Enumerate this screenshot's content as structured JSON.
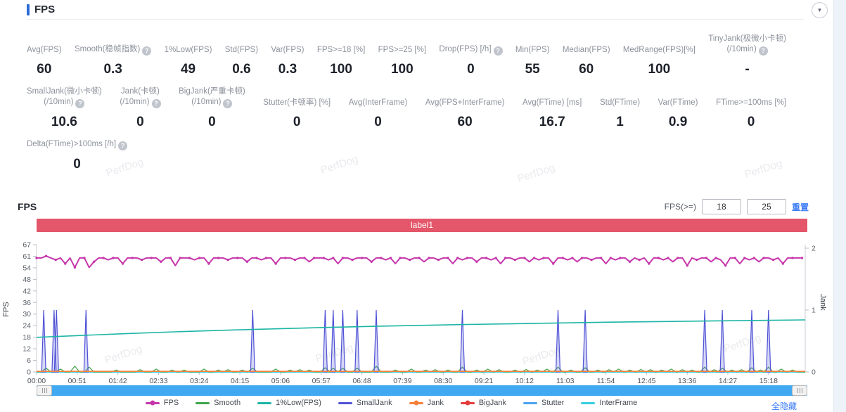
{
  "page": {
    "title": "FPS",
    "watermark": "PerfDog"
  },
  "header": {
    "collapse_icon": "caret-down"
  },
  "stats": {
    "rows": [
      {
        "items": [
          {
            "label": "Avg(FPS)",
            "value": "60"
          },
          {
            "label": "Smooth(稳帧指数)",
            "help": true,
            "value": "0.3"
          },
          {
            "label": "1%Low(FPS)",
            "value": "49"
          },
          {
            "label": "Std(FPS)",
            "value": "0.6"
          },
          {
            "label": "Var(FPS)",
            "value": "0.3"
          },
          {
            "label": "FPS>=18 [%]",
            "value": "100"
          },
          {
            "label": "FPS>=25 [%]",
            "value": "100"
          },
          {
            "label": "Drop(FPS) [/h]",
            "help": true,
            "value": "0"
          },
          {
            "label": "Min(FPS)",
            "value": "55"
          },
          {
            "label": "Median(FPS)",
            "value": "60"
          },
          {
            "label": "MedRange(FPS)[%]",
            "value": "100"
          },
          {
            "label": "TinyJank(极微小卡顿)",
            "label2": "(/10min)",
            "help": true,
            "value": "-"
          }
        ]
      },
      {
        "items": [
          {
            "label": "SmallJank(微小卡顿)",
            "label2": "(/10min)",
            "help": true,
            "value": "10.6"
          },
          {
            "label": "Jank(卡顿)",
            "label2": "(/10min)",
            "help": true,
            "value": "0"
          },
          {
            "label": "BigJank(严重卡顿)",
            "label2": "(/10min)",
            "help": true,
            "value": "0"
          },
          {
            "label": "Stutter(卡顿率) [%]",
            "value": "0"
          },
          {
            "label": "Avg(InterFrame)",
            "value": "0"
          },
          {
            "label": "Avg(FPS+InterFrame)",
            "value": "60"
          },
          {
            "label": "Avg(FTime) [ms]",
            "value": "16.7"
          },
          {
            "label": "Std(FTime)",
            "value": "1"
          },
          {
            "label": "Var(FTime)",
            "value": "0.9"
          },
          {
            "label": "FTime>=100ms [%]",
            "value": "0"
          }
        ]
      },
      {
        "items": [
          {
            "label": "Delta(FTime)>100ms [/h]",
            "help": true,
            "value": "0"
          }
        ]
      }
    ]
  },
  "chart_section": {
    "heading": "FPS",
    "filter": {
      "label": "FPS(>=)",
      "min": "18",
      "max": "25",
      "reset_label": "重置"
    },
    "banner": {
      "text": "label1",
      "color": "#e4566a"
    },
    "hide_all_label": "全隐藏"
  },
  "chart_data": {
    "type": "line",
    "title": "label1",
    "y_left": {
      "label": "FPS",
      "range": [
        0,
        67
      ],
      "tick_labels": [
        0,
        6,
        12,
        18,
        24,
        30,
        36,
        42,
        48,
        54,
        61,
        67
      ]
    },
    "y_right": {
      "label": "Jank",
      "range": [
        0,
        2
      ],
      "tick_labels": [
        0,
        1,
        2
      ]
    },
    "x": {
      "max_seconds": 964,
      "tick_seconds": [
        0,
        51,
        102,
        153,
        204,
        255,
        306,
        357,
        408,
        459,
        510,
        561,
        612,
        663,
        714,
        765,
        816,
        867,
        918
      ],
      "tick_labels": [
        "00:00",
        "00:51",
        "01:42",
        "02:33",
        "03:24",
        "04:15",
        "05:06",
        "05:57",
        "06:48",
        "07:39",
        "08:30",
        "09:21",
        "10:12",
        "11:03",
        "11:54",
        "12:45",
        "13:36",
        "14:27",
        "15:18"
      ]
    },
    "series": [
      {
        "name": "FPS",
        "color": "#c636ab",
        "axis": "left",
        "type": "line-dot",
        "t_step": 6,
        "values": [
          60,
          60,
          61,
          60,
          59,
          60,
          57,
          60,
          55,
          60,
          60,
          55,
          58,
          60,
          60,
          59,
          60,
          60,
          57,
          60,
          60,
          60,
          59,
          60,
          60,
          60,
          58,
          60,
          60,
          56,
          60,
          60,
          60,
          59,
          60,
          60,
          57,
          60,
          60,
          60,
          59,
          60,
          60,
          60,
          58,
          60,
          60,
          59,
          60,
          60,
          57,
          60,
          60,
          60,
          59,
          60,
          60,
          58,
          60,
          60,
          60,
          59,
          60,
          57,
          60,
          60,
          59,
          60,
          60,
          60,
          58,
          60,
          60,
          59,
          60,
          57,
          60,
          60,
          59,
          60,
          60,
          58,
          60,
          60,
          59,
          60,
          60,
          57,
          60,
          59,
          60,
          60,
          58,
          60,
          60,
          59,
          60,
          57,
          60,
          60,
          59,
          60,
          60,
          58,
          60,
          59,
          60,
          60,
          57,
          60,
          60,
          59,
          60,
          58,
          60,
          60,
          59,
          60,
          60,
          57,
          60,
          59,
          60,
          60,
          58,
          60,
          59,
          60,
          57,
          60,
          60,
          59,
          60,
          58,
          60,
          60,
          56,
          60,
          59,
          60,
          60,
          58,
          60,
          59,
          56,
          60,
          60,
          57,
          60,
          59,
          60,
          58,
          60,
          60,
          59,
          60,
          57,
          60,
          60,
          60,
          60
        ]
      },
      {
        "name": "Smooth",
        "color": "#3fa54a",
        "axis": "left",
        "type": "spikes-line",
        "spikes": [
          [
            12,
            2
          ],
          [
            30,
            1.5
          ],
          [
            48,
            3
          ],
          [
            66,
            2.5
          ],
          [
            100,
            1
          ],
          [
            130,
            1.2
          ],
          [
            150,
            1.5
          ],
          [
            170,
            1
          ],
          [
            185,
            1
          ],
          [
            210,
            1.5
          ],
          [
            228,
            1
          ],
          [
            240,
            1.2
          ],
          [
            258,
            1
          ],
          [
            271,
            2
          ],
          [
            300,
            1.5
          ],
          [
            318,
            1
          ],
          [
            330,
            1.2
          ],
          [
            342,
            1
          ],
          [
            362,
            2.2
          ],
          [
            372,
            2
          ],
          [
            384,
            2
          ],
          [
            402,
            2
          ],
          [
            426,
            3
          ],
          [
            450,
            1
          ],
          [
            470,
            1.5
          ],
          [
            488,
            1
          ],
          [
            500,
            1.2
          ],
          [
            516,
            1
          ],
          [
            534,
            2.5
          ],
          [
            552,
            1
          ],
          [
            566,
            1.5
          ],
          [
            580,
            1.2
          ],
          [
            600,
            1
          ],
          [
            614,
            1.3
          ],
          [
            628,
            1
          ],
          [
            640,
            1.5
          ],
          [
            654,
            2.5
          ],
          [
            670,
            1
          ],
          [
            688,
            2.2
          ],
          [
            704,
            1
          ],
          [
            718,
            1.2
          ],
          [
            730,
            1.5
          ],
          [
            744,
            1
          ],
          [
            758,
            1.3
          ],
          [
            770,
            1.2
          ],
          [
            784,
            1
          ],
          [
            796,
            1.5
          ],
          [
            810,
            1.2
          ],
          [
            822,
            1
          ],
          [
            838,
            2.5
          ],
          [
            850,
            1.2
          ],
          [
            860,
            2
          ],
          [
            872,
            1
          ],
          [
            884,
            1.2
          ],
          [
            897,
            2.2
          ],
          [
            908,
            1
          ],
          [
            918,
            2.5
          ],
          [
            934,
            1.5
          ],
          [
            948,
            1
          ]
        ]
      },
      {
        "name": "1%Low(FPS)",
        "color": "#1cb5a5",
        "axis": "left",
        "type": "line",
        "points": [
          [
            0,
            18.2
          ],
          [
            60,
            19.3
          ],
          [
            120,
            20.3
          ],
          [
            180,
            21.2
          ],
          [
            240,
            22.0
          ],
          [
            300,
            22.7
          ],
          [
            360,
            23.4
          ],
          [
            420,
            24.0
          ],
          [
            480,
            24.5
          ],
          [
            540,
            25.0
          ],
          [
            600,
            25.4
          ],
          [
            660,
            25.8
          ],
          [
            720,
            26.2
          ],
          [
            780,
            26.5
          ],
          [
            840,
            26.8
          ],
          [
            900,
            27.1
          ],
          [
            964,
            27.4
          ]
        ]
      },
      {
        "name": "SmallJank",
        "color": "#4f52d6",
        "axis": "right",
        "type": "spikes",
        "spike_value": 1,
        "times": [
          9,
          22,
          25,
          62,
          271,
          362,
          372,
          384,
          402,
          426,
          534,
          654,
          688,
          838,
          860,
          897,
          918
        ]
      },
      {
        "name": "Jank",
        "color": "#f5803c",
        "axis": "right",
        "type": "flat",
        "value": 0
      },
      {
        "name": "BigJank",
        "color": "#e33c3c",
        "axis": "right",
        "type": "flat",
        "value": 0
      },
      {
        "name": "Stutter",
        "color": "#4ba3f0",
        "axis": "right",
        "type": "flat",
        "value": 0
      },
      {
        "name": "InterFrame",
        "color": "#35cfe0",
        "axis": "left",
        "type": "flat",
        "value": 0
      }
    ],
    "legend": [
      {
        "label": "FPS",
        "color": "#c636ab",
        "swatch": "line-dot"
      },
      {
        "label": "Smooth",
        "color": "#3fa54a",
        "swatch": "line"
      },
      {
        "label": "1%Low(FPS)",
        "color": "#1cb5a5",
        "swatch": "line"
      },
      {
        "label": "SmallJank",
        "color": "#4f52d6",
        "swatch": "line"
      },
      {
        "label": "Jank",
        "color": "#f5803c",
        "swatch": "line-dot"
      },
      {
        "label": "BigJank",
        "color": "#e33c3c",
        "swatch": "line-dot"
      },
      {
        "label": "Stutter",
        "color": "#4ba3f0",
        "swatch": "line"
      },
      {
        "label": "InterFrame",
        "color": "#35cfe0",
        "swatch": "line"
      }
    ]
  }
}
